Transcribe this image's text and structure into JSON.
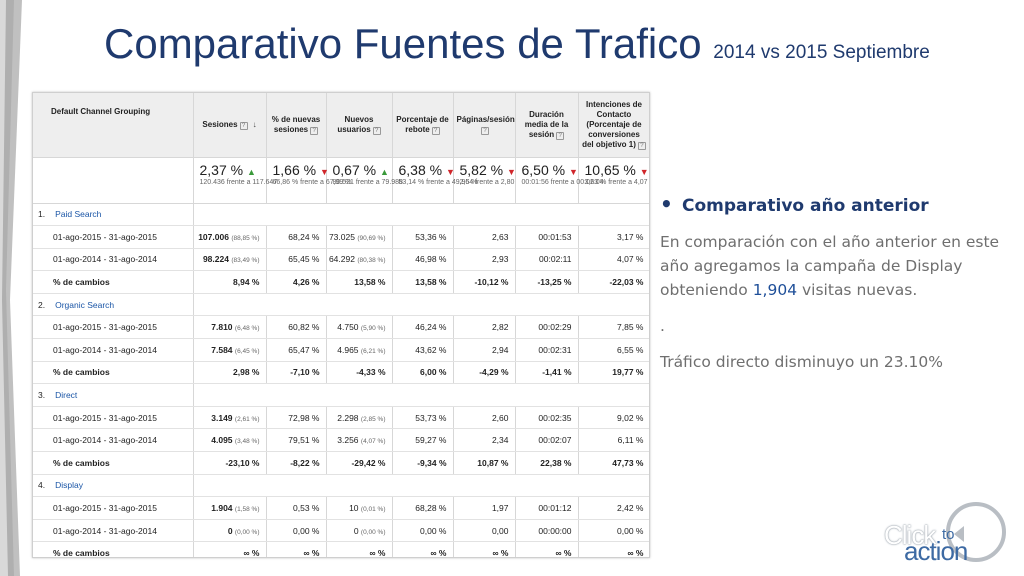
{
  "title": {
    "main": "Comparativo Fuentes de Trafico",
    "sub": "2014 vs 2015 Septiembre"
  },
  "colors": {
    "title": "#1f3a6e",
    "link": "#1a55a6",
    "up": "#3a9a3a",
    "down": "#d0262b"
  },
  "table": {
    "headers": [
      "Default Channel Grouping",
      "Sesiones",
      "% de nuevas sesiones",
      "Nuevos usuarios",
      "Porcentaje de rebote",
      "Páginas/sesión",
      "Duración media de la sesión",
      "Intenciones de Contacto (Porcentaje de conversiones del objetivo 1)"
    ],
    "summary": [
      {
        "pct": "2,37 %",
        "dir": "up",
        "detail": "120.436 frente a 117.647"
      },
      {
        "pct": "1,66 %",
        "dir": "down",
        "detail": "66,86 % frente a 67,99 %"
      },
      {
        "pct": "0,67 %",
        "dir": "up",
        "detail": "80.521 frente a 79.988"
      },
      {
        "pct": "6,38 %",
        "dir": "down",
        "detail": "53,14 % frente a 49,95 %"
      },
      {
        "pct": "5,82 %",
        "dir": "down",
        "detail": "2,64 frente a 2,80"
      },
      {
        "pct": "6,50 %",
        "dir": "down",
        "detail": "00:01:56 frente a 00:02:04"
      },
      {
        "pct": "10,65 %",
        "dir": "down",
        "detail": "3,63 % frente a 4,07 %"
      }
    ],
    "groups": [
      {
        "num": "1.",
        "name": "Paid Search",
        "rows": [
          {
            "label": "01-ago-2015 - 31-ago-2015",
            "sesiones": "107.006",
            "ses_share": "(88,85 %)",
            "nuevas": "68,24 %",
            "usuarios": "73.025",
            "usr_share": "(90,69 %)",
            "rebote": "53,36 %",
            "paginas": "2,63",
            "duracion": "00:01:53",
            "intenciones": "3,17 %"
          },
          {
            "label": "01-ago-2014 - 31-ago-2014",
            "sesiones": "98.224",
            "ses_share": "(83,49 %)",
            "nuevas": "65,45 %",
            "usuarios": "64.292",
            "usr_share": "(80,38 %)",
            "rebote": "46,98 %",
            "paginas": "2,93",
            "duracion": "00:02:11",
            "intenciones": "4,07 %"
          }
        ],
        "change": {
          "label": "% de cambios",
          "sesiones": "8,94 %",
          "nuevas": "4,26 %",
          "usuarios": "13,58 %",
          "rebote": "13,58 %",
          "paginas": "-10,12 %",
          "duracion": "-13,25 %",
          "intenciones": "-22,03 %"
        }
      },
      {
        "num": "2.",
        "name": "Organic Search",
        "rows": [
          {
            "label": "01-ago-2015 - 31-ago-2015",
            "sesiones": "7.810",
            "ses_share": "(6,48 %)",
            "nuevas": "60,82 %",
            "usuarios": "4.750",
            "usr_share": "(5,90 %)",
            "rebote": "46,24 %",
            "paginas": "2,82",
            "duracion": "00:02:29",
            "intenciones": "7,85 %"
          },
          {
            "label": "01-ago-2014 - 31-ago-2014",
            "sesiones": "7.584",
            "ses_share": "(6,45 %)",
            "nuevas": "65,47 %",
            "usuarios": "4.965",
            "usr_share": "(6,21 %)",
            "rebote": "43,62 %",
            "paginas": "2,94",
            "duracion": "00:02:31",
            "intenciones": "6,55 %"
          }
        ],
        "change": {
          "label": "% de cambios",
          "sesiones": "2,98 %",
          "nuevas": "-7,10 %",
          "usuarios": "-4,33 %",
          "rebote": "6,00 %",
          "paginas": "-4,29 %",
          "duracion": "-1,41 %",
          "intenciones": "19,77 %"
        }
      },
      {
        "num": "3.",
        "name": "Direct",
        "rows": [
          {
            "label": "01-ago-2015 - 31-ago-2015",
            "sesiones": "3.149",
            "ses_share": "(2,61 %)",
            "nuevas": "72,98 %",
            "usuarios": "2.298",
            "usr_share": "(2,85 %)",
            "rebote": "53,73 %",
            "paginas": "2,60",
            "duracion": "00:02:35",
            "intenciones": "9,02 %"
          },
          {
            "label": "01-ago-2014 - 31-ago-2014",
            "sesiones": "4.095",
            "ses_share": "(3,48 %)",
            "nuevas": "79,51 %",
            "usuarios": "3.256",
            "usr_share": "(4,07 %)",
            "rebote": "59,27 %",
            "paginas": "2,34",
            "duracion": "00:02:07",
            "intenciones": "6,11 %"
          }
        ],
        "change": {
          "label": "% de cambios",
          "sesiones": "-23,10 %",
          "nuevas": "-8,22 %",
          "usuarios": "-29,42 %",
          "rebote": "-9,34 %",
          "paginas": "10,87 %",
          "duracion": "22,38 %",
          "intenciones": "47,73 %"
        }
      },
      {
        "num": "4.",
        "name": "Display",
        "rows": [
          {
            "label": "01-ago-2015 - 31-ago-2015",
            "sesiones": "1.904",
            "ses_share": "(1,58 %)",
            "nuevas": "0,53 %",
            "usuarios": "10",
            "usr_share": "(0,01 %)",
            "rebote": "68,28 %",
            "paginas": "1,97",
            "duracion": "00:01:12",
            "intenciones": "2,42 %"
          },
          {
            "label": "01-ago-2014 - 31-ago-2014",
            "sesiones": "0",
            "ses_share": "(0,00 %)",
            "nuevas": "0,00 %",
            "usuarios": "0",
            "usr_share": "(0,00 %)",
            "rebote": "0,00 %",
            "paginas": "0,00",
            "duracion": "00:00:00",
            "intenciones": "0,00 %"
          }
        ],
        "change": {
          "label": "% de cambios",
          "sesiones": "∞ %",
          "nuevas": "∞ %",
          "usuarios": "∞ %",
          "rebote": "∞ %",
          "paginas": "∞ %",
          "duracion": "∞ %",
          "intenciones": "∞ %"
        }
      }
    ]
  },
  "bullets": {
    "heading": "Comparativo año anterior",
    "para_before": "En comparación con el año anterior en este año agregamos la campaña de Display obteniendo",
    "highlight": "1,904",
    "para_after": "visitas nuevas.",
    "dot_line": ".",
    "note": "Tráfico directo disminuyo un 23.10%"
  },
  "logo": {
    "word1": "Click",
    "word2": "to",
    "word3": "action"
  }
}
